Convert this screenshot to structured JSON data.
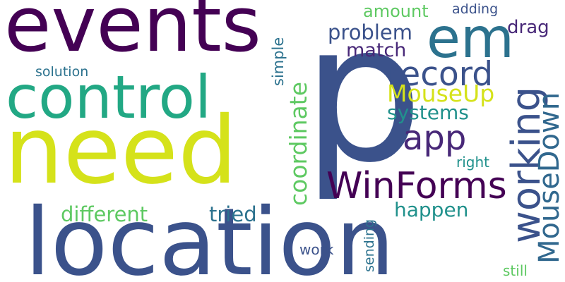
{
  "background": "#ffffff",
  "palette": [
    "#440154",
    "#3b528b",
    "#21918c",
    "#5ec962",
    "#d5e21a",
    "#2c728e",
    "#482878"
  ],
  "words": [
    {
      "text": "events",
      "color": "#440154"
    },
    {
      "text": "p",
      "color": "#3b528b"
    },
    {
      "text": "need",
      "color": "#d5e21a"
    },
    {
      "text": "location",
      "color": "#3b528b"
    },
    {
      "text": "control",
      "color": "#22a884"
    },
    {
      "text": "em",
      "color": "#2c728e"
    },
    {
      "text": "working",
      "color": "#3b528b"
    },
    {
      "text": "WinForms",
      "color": "#440154"
    },
    {
      "text": "MouseDown",
      "color": "#31688e"
    },
    {
      "text": "record",
      "color": "#3b528b"
    },
    {
      "text": "app",
      "color": "#482878"
    },
    {
      "text": "coordinate",
      "color": "#5ec962"
    },
    {
      "text": "MouseUp",
      "color": "#d5e21a"
    },
    {
      "text": "systems",
      "color": "#21918c"
    },
    {
      "text": "problem",
      "color": "#3b528b"
    },
    {
      "text": "match",
      "color": "#482878"
    },
    {
      "text": "amount",
      "color": "#5ec962"
    },
    {
      "text": "adding",
      "color": "#3b528b"
    },
    {
      "text": "drag",
      "color": "#482878"
    },
    {
      "text": "different",
      "color": "#5ec962"
    },
    {
      "text": "tried",
      "color": "#2c728e"
    },
    {
      "text": "happen",
      "color": "#21918c"
    },
    {
      "text": "solution",
      "color": "#2c728e"
    },
    {
      "text": "simple",
      "color": "#2c728e"
    },
    {
      "text": "right",
      "color": "#21918c"
    },
    {
      "text": "sending",
      "color": "#2c728e"
    },
    {
      "text": "work",
      "color": "#3b528b"
    },
    {
      "text": "still",
      "color": "#5ec962"
    }
  ]
}
